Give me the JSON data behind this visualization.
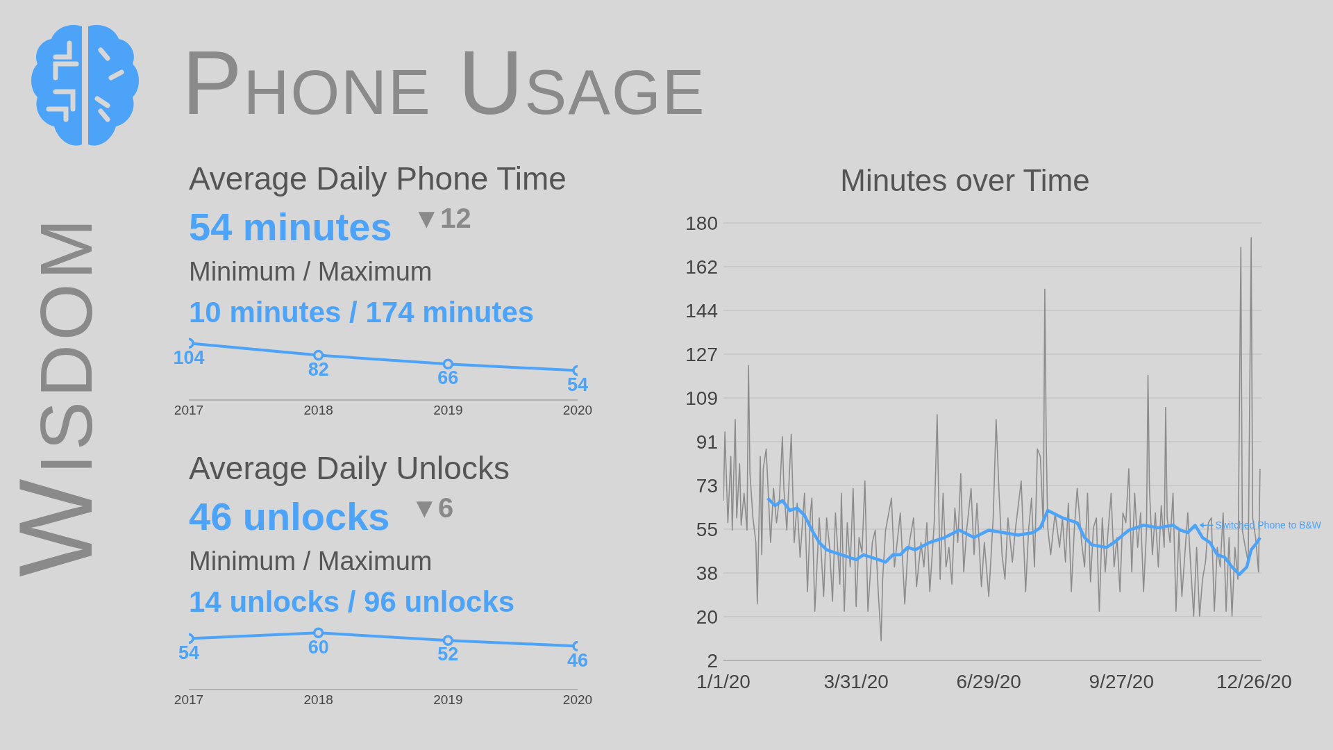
{
  "chart_data": [
    {
      "type": "other",
      "title": "Phone Usage",
      "annotations": [
        "Wisdom"
      ]
    },
    {
      "type": "line",
      "title": "Average Daily Phone Time",
      "subtitle": "54 minutes",
      "annotations": [
        "▼12",
        "Minimum / Maximum",
        "10 minutes / 174 minutes"
      ],
      "categories": [
        "2017",
        "2018",
        "2019",
        "2020"
      ],
      "values": [
        104,
        82,
        66,
        54
      ],
      "color": "#4da3f7",
      "data_labels": true,
      "marker": "circle"
    },
    {
      "type": "line",
      "title": "Average Daily Unlocks",
      "subtitle": "46 unlocks",
      "annotations": [
        "▼6",
        "Minimum / Maximum",
        "14 unlocks / 96 unlocks"
      ],
      "categories": [
        "2017",
        "2018",
        "2019",
        "2020"
      ],
      "values": [
        54,
        60,
        52,
        46
      ],
      "color": "#4da3f7",
      "data_labels": true,
      "marker": "circle"
    },
    {
      "type": "line",
      "title": "Minutes over Time",
      "xlim": [
        "2020-01-01",
        "2020-12-31"
      ],
      "xticks": [
        {
          "value": "2020-01-01",
          "label": "1/1/20"
        },
        {
          "value": "2020-03-31",
          "label": "3/31/20"
        },
        {
          "value": "2020-06-29",
          "label": "6/29/20"
        },
        {
          "value": "2020-09-27",
          "label": "9/27/20"
        },
        {
          "value": "2020-12-26",
          "label": "12/26/20"
        }
      ],
      "ylim": [
        2,
        180
      ],
      "yticks": [
        2,
        {
          "value": 19.8,
          "label": "20"
        },
        {
          "value": 37.6,
          "label": "38"
        },
        {
          "value": 55.4,
          "label": "55"
        },
        {
          "value": 73.2,
          "label": "73"
        },
        91,
        {
          "value": 108.8,
          "label": "109"
        },
        {
          "value": 126.6,
          "label": "127"
        },
        {
          "value": 144.4,
          "label": "144"
        },
        {
          "value": 162.2,
          "label": "162"
        },
        180
      ],
      "grid": "y",
      "marker": "none",
      "annotations": [
        {
          "text": "Switched Phone to B&W",
          "x": "2020-11-17",
          "y": 57
        }
      ],
      "series": [
        {
          "color": "#8c8c8c",
          "x": [
            "2020-01-01",
            "2020-01-02",
            "2020-01-04",
            "2020-01-06",
            "2020-01-07",
            "2020-01-09",
            "2020-01-10",
            "2020-01-12",
            "2020-01-13",
            "2020-01-15",
            "2020-01-17",
            "2020-01-18",
            "2020-01-19",
            "2020-01-21",
            "2020-01-23",
            "2020-01-24",
            "2020-01-26",
            "2020-01-27",
            "2020-01-28",
            "2020-01-30",
            "2020-02-02",
            "2020-02-04",
            "2020-02-06",
            "2020-02-08",
            "2020-02-10",
            "2020-02-11",
            "2020-02-13",
            "2020-02-16",
            "2020-02-18",
            "2020-02-20",
            "2020-02-22",
            "2020-02-25",
            "2020-02-27",
            "2020-02-29",
            "2020-03-01",
            "2020-03-03",
            "2020-03-06",
            "2020-03-09",
            "2020-03-11",
            "2020-03-13",
            "2020-03-15",
            "2020-03-17",
            "2020-03-20",
            "2020-03-21",
            "2020-03-23",
            "2020-03-25",
            "2020-03-27",
            "2020-03-29",
            "2020-03-31",
            "2020-04-02",
            "2020-04-04",
            "2020-04-06",
            "2020-04-08",
            "2020-04-11",
            "2020-04-13",
            "2020-04-15",
            "2020-04-17",
            "2020-04-18",
            "2020-04-20",
            "2020-04-24",
            "2020-04-26",
            "2020-04-30",
            "2020-05-03",
            "2020-05-05",
            "2020-05-09",
            "2020-05-11",
            "2020-05-14",
            "2020-05-16",
            "2020-05-18",
            "2020-05-20",
            "2020-05-23",
            "2020-05-25",
            "2020-05-27",
            "2020-05-29",
            "2020-05-31",
            "2020-06-02",
            "2020-06-04",
            "2020-06-06",
            "2020-06-08",
            "2020-06-10",
            "2020-06-12",
            "2020-06-14",
            "2020-06-17",
            "2020-06-19",
            "2020-06-21",
            "2020-06-24",
            "2020-06-26",
            "2020-06-29",
            "2020-07-02",
            "2020-07-04",
            "2020-07-06",
            "2020-07-08",
            "2020-07-10",
            "2020-07-12",
            "2020-07-15",
            "2020-07-17",
            "2020-07-21",
            "2020-07-24",
            "2020-07-26",
            "2020-07-28",
            "2020-07-30",
            "2020-08-01",
            "2020-08-03",
            "2020-08-05",
            "2020-08-06",
            "2020-08-07",
            "2020-08-08",
            "2020-08-10",
            "2020-08-13",
            "2020-08-16",
            "2020-08-18",
            "2020-08-20",
            "2020-08-22",
            "2020-08-24",
            "2020-08-26",
            "2020-08-28",
            "2020-08-31",
            "2020-09-02",
            "2020-09-04",
            "2020-09-06",
            "2020-09-08",
            "2020-09-10",
            "2020-09-12",
            "2020-09-14",
            "2020-09-16",
            "2020-09-18",
            "2020-09-20",
            "2020-09-22",
            "2020-09-24",
            "2020-09-26",
            "2020-09-28",
            "2020-09-30",
            "2020-10-02",
            "2020-10-04",
            "2020-10-06",
            "2020-10-08",
            "2020-10-10",
            "2020-10-12",
            "2020-10-14",
            "2020-10-15",
            "2020-10-16",
            "2020-10-18",
            "2020-10-20",
            "2020-10-22",
            "2020-10-24",
            "2020-10-26",
            "2020-10-27",
            "2020-10-28",
            "2020-10-30",
            "2020-11-01",
            "2020-11-03",
            "2020-11-05",
            "2020-11-07",
            "2020-11-09",
            "2020-11-11",
            "2020-11-13",
            "2020-11-15",
            "2020-11-17",
            "2020-11-19",
            "2020-11-21",
            "2020-11-23",
            "2020-11-25",
            "2020-11-27",
            "2020-11-29",
            "2020-12-01",
            "2020-12-03",
            "2020-12-05",
            "2020-12-07",
            "2020-12-09",
            "2020-12-11",
            "2020-12-13",
            "2020-12-15",
            "2020-12-17",
            "2020-12-18",
            "2020-12-20",
            "2020-12-22",
            "2020-12-24",
            "2020-12-25",
            "2020-12-27",
            "2020-12-29",
            "2020-12-30"
          ],
          "values": [
            67,
            95,
            58,
            85,
            55,
            100,
            60,
            82,
            57,
            70,
            55,
            122,
            78,
            60,
            50,
            25,
            85,
            45,
            80,
            88,
            50,
            72,
            58,
            68,
            93,
            72,
            55,
            94,
            50,
            66,
            44,
            70,
            30,
            62,
            68,
            22,
            60,
            28,
            60,
            48,
            26,
            62,
            33,
            70,
            22,
            58,
            40,
            72,
            24,
            52,
            46,
            75,
            22,
            50,
            55,
            30,
            10,
            35,
            55,
            68,
            40,
            62,
            25,
            46,
            60,
            32,
            50,
            40,
            58,
            30,
            58,
            102,
            35,
            70,
            40,
            48,
            33,
            64,
            50,
            78,
            38,
            55,
            72,
            45,
            66,
            32,
            50,
            28,
            60,
            100,
            70,
            45,
            35,
            60,
            42,
            55,
            75,
            30,
            55,
            68,
            40,
            88,
            85,
            56,
            153,
            90,
            56,
            45,
            62,
            48,
            60,
            42,
            66,
            30,
            55,
            72,
            50,
            40,
            70,
            34,
            56,
            60,
            22,
            60,
            38,
            55,
            70,
            40,
            52,
            30,
            62,
            58,
            80,
            38,
            70,
            48,
            62,
            30,
            55,
            118,
            72,
            45,
            62,
            40,
            65,
            48,
            105,
            60,
            50,
            70,
            22,
            55,
            28,
            45,
            62,
            40,
            20,
            48,
            20,
            35,
            42,
            58,
            60,
            22,
            48,
            40,
            62,
            22,
            52,
            20,
            48,
            35,
            170,
            55,
            48,
            42,
            174,
            60,
            52,
            38,
            80
          ]
        },
        {
          "color": "#4da3f7",
          "x": [
            "2020-01-31",
            "2020-02-05",
            "2020-02-10",
            "2020-02-15",
            "2020-02-20",
            "2020-02-25",
            "2020-03-01",
            "2020-03-06",
            "2020-03-11",
            "2020-03-16",
            "2020-03-21",
            "2020-03-26",
            "2020-03-31",
            "2020-04-05",
            "2020-04-10",
            "2020-04-20",
            "2020-04-25",
            "2020-04-30",
            "2020-05-05",
            "2020-05-10",
            "2020-05-20",
            "2020-05-30",
            "2020-06-09",
            "2020-06-19",
            "2020-06-29",
            "2020-07-09",
            "2020-07-19",
            "2020-07-29",
            "2020-08-03",
            "2020-08-08",
            "2020-08-18",
            "2020-08-28",
            "2020-09-02",
            "2020-09-07",
            "2020-09-17",
            "2020-09-22",
            "2020-10-02",
            "2020-10-12",
            "2020-10-22",
            "2020-11-01",
            "2020-11-06",
            "2020-11-11",
            "2020-11-16",
            "2020-11-21",
            "2020-11-26",
            "2020-12-01",
            "2020-12-06",
            "2020-12-11",
            "2020-12-16",
            "2020-12-21",
            "2020-12-24",
            "2020-12-28",
            "2020-12-30"
          ],
          "values": [
            68,
            65,
            67,
            63,
            64,
            61,
            55,
            50,
            47,
            46,
            45,
            44,
            43,
            45,
            44,
            42,
            45,
            45,
            48,
            47,
            50,
            52,
            55,
            52,
            55,
            54,
            53,
            54,
            56,
            63,
            60,
            58,
            52,
            49,
            48,
            50,
            55,
            57,
            56,
            57,
            55,
            54,
            57,
            52,
            50,
            45,
            44,
            40,
            37,
            40,
            47,
            50,
            52
          ]
        }
      ]
    }
  ]
}
